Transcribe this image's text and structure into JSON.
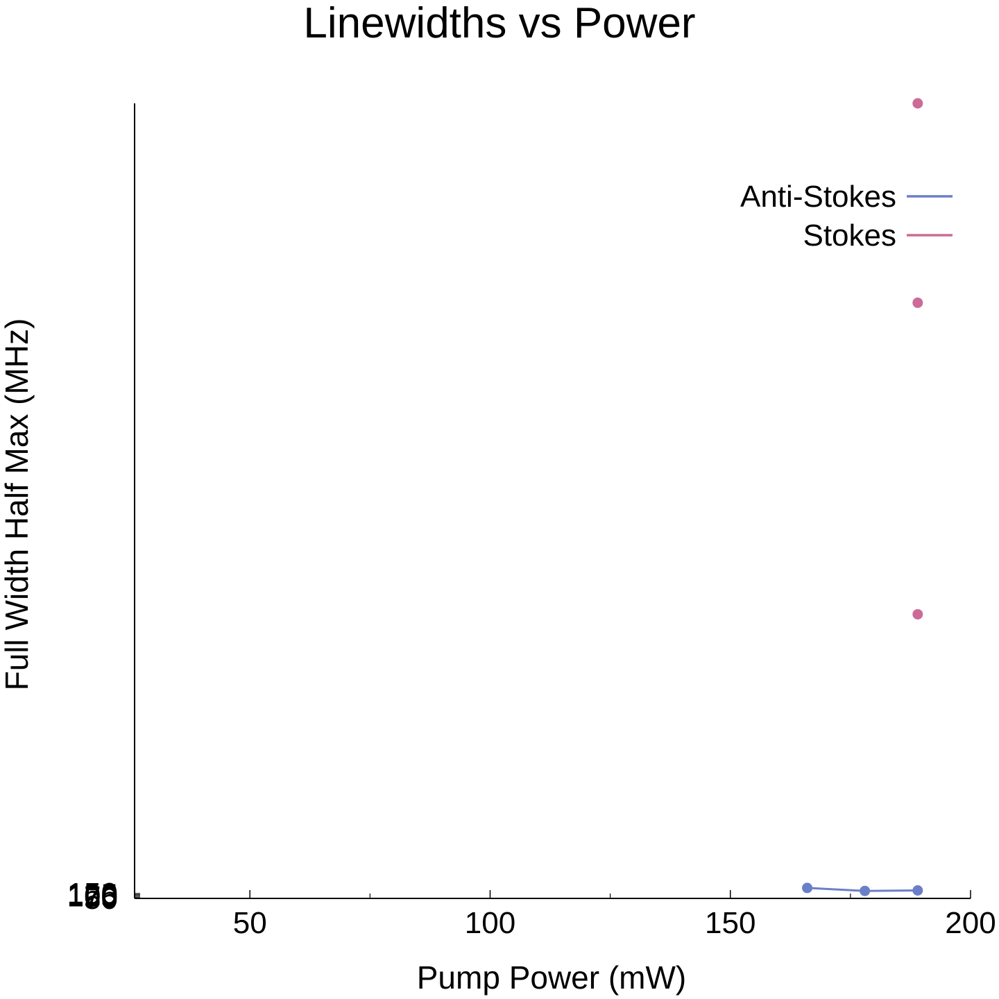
{
  "chart_data": {
    "type": "scatter",
    "title": "Linewidths vs Power",
    "xlabel": "Pump Power (mW)",
    "ylabel": "Full Width Half Max (MHz)",
    "xlim": [
      26,
      200
    ],
    "ylim": [
      50,
      16000
    ],
    "x_ticks": [
      50,
      100,
      150,
      200
    ],
    "x_minor_ticks": [
      75,
      125,
      175
    ],
    "y_ticks": [
      50,
      75,
      100,
      125,
      150
    ],
    "y_tick_labels": [
      "50",
      "75",
      "100",
      "125",
      "150"
    ],
    "grid": false,
    "legend_position": "top-right",
    "series": [
      {
        "name": "Anti-Stokes",
        "color": "#6b7fc8",
        "style": "line+markers",
        "x": [
          166,
          178,
          189
        ],
        "y": [
          260,
          200,
          210
        ]
      },
      {
        "name": "Stokes",
        "color": "#cc6b97",
        "style": "markers",
        "x": [
          189,
          189,
          189
        ],
        "y": [
          16000,
          12000,
          5750
        ]
      }
    ]
  }
}
